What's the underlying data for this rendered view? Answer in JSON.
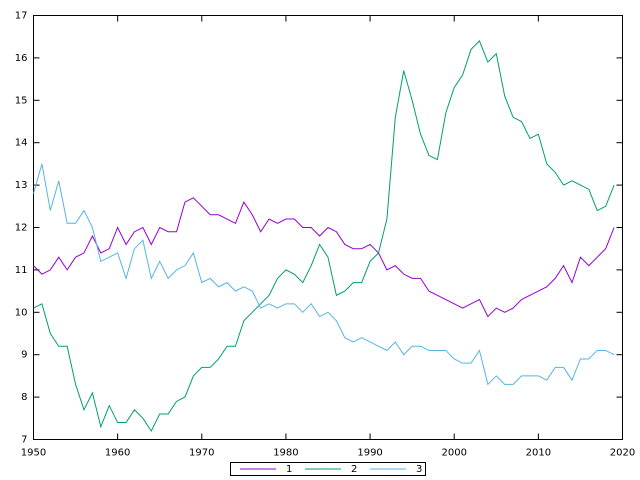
{
  "chart_data": {
    "type": "line",
    "x": [
      1950,
      1951,
      1952,
      1953,
      1954,
      1955,
      1956,
      1957,
      1958,
      1959,
      1960,
      1961,
      1962,
      1963,
      1964,
      1965,
      1966,
      1967,
      1968,
      1969,
      1970,
      1971,
      1972,
      1973,
      1974,
      1975,
      1976,
      1977,
      1978,
      1979,
      1980,
      1981,
      1982,
      1983,
      1984,
      1985,
      1986,
      1987,
      1988,
      1989,
      1990,
      1991,
      1992,
      1993,
      1994,
      1995,
      1996,
      1997,
      1998,
      1999,
      2000,
      2001,
      2002,
      2003,
      2004,
      2005,
      2006,
      2007,
      2008,
      2009,
      2010,
      2011,
      2012,
      2013,
      2014,
      2015,
      2016,
      2017,
      2018,
      2019
    ],
    "series": [
      {
        "name": "1",
        "color": "#9400d3",
        "values": [
          11.1,
          10.9,
          11.0,
          11.3,
          11.0,
          11.3,
          11.4,
          11.8,
          11.4,
          11.5,
          12.0,
          11.6,
          11.9,
          12.0,
          11.6,
          12.0,
          11.9,
          11.9,
          12.6,
          12.7,
          12.5,
          12.3,
          12.3,
          12.2,
          12.1,
          12.6,
          12.3,
          11.9,
          12.2,
          12.1,
          12.2,
          12.2,
          12.0,
          12.0,
          11.8,
          12.0,
          11.9,
          11.6,
          11.5,
          11.5,
          11.6,
          11.4,
          11.0,
          11.1,
          10.9,
          10.8,
          10.8,
          10.5,
          10.4,
          10.3,
          10.2,
          10.1,
          10.2,
          10.3,
          9.9,
          10.1,
          10.0,
          10.1,
          10.3,
          10.4,
          10.5,
          10.6,
          10.8,
          11.1,
          10.7,
          11.3,
          11.1,
          11.3,
          11.5,
          12.0
        ]
      },
      {
        "name": "2",
        "color": "#009e73",
        "values": [
          10.1,
          10.2,
          9.5,
          9.2,
          9.2,
          8.3,
          7.7,
          8.1,
          7.3,
          7.8,
          7.4,
          7.4,
          7.7,
          7.5,
          7.2,
          7.6,
          7.6,
          7.9,
          8.0,
          8.5,
          8.7,
          8.7,
          8.9,
          9.2,
          9.2,
          9.8,
          10.0,
          10.2,
          10.4,
          10.8,
          11.0,
          10.9,
          10.7,
          11.1,
          11.6,
          11.3,
          10.4,
          10.5,
          10.7,
          10.7,
          11.2,
          11.4,
          12.2,
          14.6,
          15.7,
          15.0,
          14.2,
          13.7,
          13.6,
          14.7,
          15.3,
          15.6,
          16.2,
          16.4,
          15.9,
          16.1,
          15.1,
          14.6,
          14.5,
          14.1,
          14.2,
          13.5,
          13.3,
          13.0,
          13.1,
          13.0,
          12.9,
          12.4,
          12.5,
          13.0
        ]
      },
      {
        "name": "3",
        "color": "#56b4e9",
        "values": [
          12.8,
          13.5,
          12.4,
          13.1,
          12.1,
          12.1,
          12.4,
          12.0,
          11.2,
          11.3,
          11.4,
          10.8,
          11.5,
          11.7,
          10.8,
          11.2,
          10.8,
          11.0,
          11.1,
          11.4,
          10.7,
          10.8,
          10.6,
          10.7,
          10.5,
          10.6,
          10.5,
          10.1,
          10.2,
          10.1,
          10.2,
          10.2,
          10.0,
          10.2,
          9.9,
          10.0,
          9.8,
          9.4,
          9.3,
          9.4,
          9.3,
          9.2,
          9.1,
          9.3,
          9.0,
          9.2,
          9.2,
          9.1,
          9.1,
          9.1,
          8.9,
          8.8,
          8.8,
          9.1,
          8.3,
          8.5,
          8.3,
          8.3,
          8.5,
          8.5,
          8.5,
          8.4,
          8.7,
          8.7,
          8.4,
          8.9,
          8.9,
          9.1,
          9.1,
          9.0
        ]
      }
    ],
    "xlim": [
      1950,
      2020
    ],
    "xticks": [
      1950,
      1960,
      1970,
      1980,
      1990,
      2000,
      2010,
      2020
    ],
    "ylim": [
      7,
      17
    ],
    "yticks": [
      7,
      8,
      9,
      10,
      11,
      12,
      13,
      14,
      15,
      16,
      17
    ],
    "grid": false,
    "legend": "bottom"
  }
}
